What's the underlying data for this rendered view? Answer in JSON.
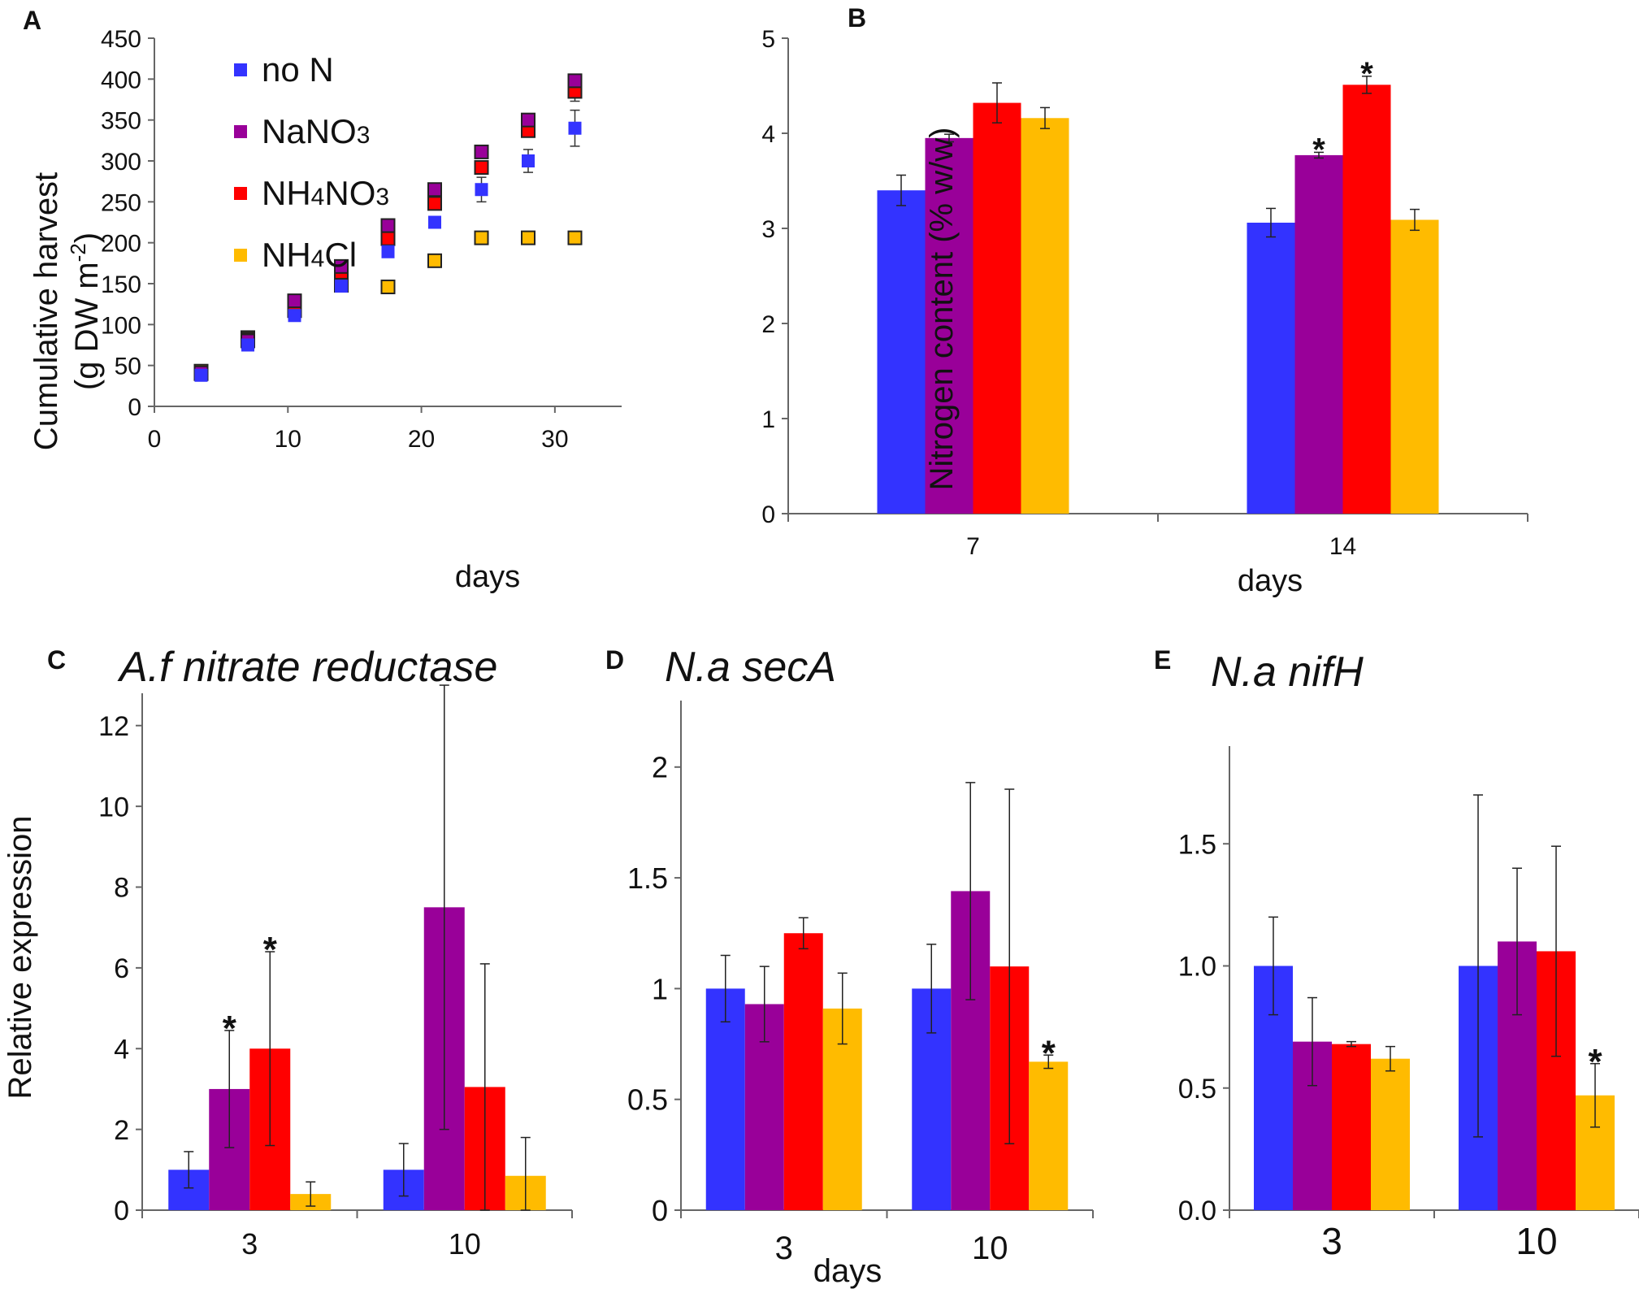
{
  "colors": {
    "no_N": "#3333ff",
    "NaNO3": "#990099",
    "NH4NO3": "#ff0000",
    "NH4Cl": "#ffbb00",
    "axis": "#666666"
  },
  "panels": {
    "A": {
      "letter": "A"
    },
    "B": {
      "letter": "B"
    },
    "C": {
      "letter": "C"
    },
    "D": {
      "letter": "D"
    },
    "E": {
      "letter": "E"
    }
  },
  "legend": {
    "no_N": "no N",
    "NaNO3_pre": "NaNO",
    "NaNO3_sub": "3",
    "NH4NO3_pre": "NH",
    "NH4NO3_sub1": "4",
    "NH4NO3_mid": "NO",
    "NH4NO3_sub2": "3",
    "NH4Cl_pre": "NH",
    "NH4Cl_sub": "4",
    "NH4Cl_post": "Cl"
  },
  "chart_data": [
    {
      "id": "A",
      "type": "scatter",
      "xlabel": "days",
      "ylabel_line1": "Cumulative harvest",
      "ylabel_line2_pre": "(g DW m",
      "ylabel_line2_sup": "-2",
      "ylabel_line2_post": ")",
      "xlim": [
        0,
        35
      ],
      "ylim": [
        0,
        450
      ],
      "xticks": [
        "0",
        "10",
        "20",
        "30"
      ],
      "xtick_values": [
        0,
        10,
        20,
        30
      ],
      "yticks": [
        "0",
        "50",
        "100",
        "150",
        "200",
        "250",
        "300",
        "350",
        "400",
        "450"
      ],
      "ytick_values": [
        0,
        50,
        100,
        150,
        200,
        250,
        300,
        350,
        400,
        450
      ],
      "x": [
        3.5,
        7,
        10.5,
        14,
        17.5,
        21,
        24.5,
        28,
        31.5
      ],
      "series": [
        {
          "key": "NH4Cl",
          "name": "NH4Cl",
          "y": [
            43,
            84,
            117,
            148,
            146,
            178,
            206,
            206,
            206
          ],
          "err": [
            0,
            8,
            0,
            0,
            0,
            0,
            0,
            0,
            0
          ]
        },
        {
          "key": "NH4NO3",
          "name": "NH4NO3",
          "y": [
            40,
            82,
            125,
            164,
            205,
            248,
            292,
            337,
            385
          ],
          "err": [
            0,
            0,
            0,
            0,
            0,
            0,
            0,
            0,
            12
          ]
        },
        {
          "key": "NaNO3",
          "name": "NaNO3",
          "y": [
            41,
            80,
            129,
            171,
            221,
            265,
            311,
            350,
            398
          ],
          "err": [
            0,
            0,
            0,
            0,
            0,
            0,
            0,
            0,
            8
          ]
        },
        {
          "key": "no_N",
          "name": "no N",
          "y": [
            38,
            75,
            111,
            147,
            189,
            225,
            265,
            300,
            340
          ],
          "err": [
            0,
            0,
            0,
            0,
            0,
            0,
            15,
            14,
            22
          ]
        }
      ]
    },
    {
      "id": "B",
      "type": "bar",
      "xlabel": "days",
      "ylabel": "Nitrogen content  (% w/w)",
      "ylim": [
        0,
        5
      ],
      "yticks": [
        "0",
        "1",
        "2",
        "3",
        "4",
        "5"
      ],
      "ytick_values": [
        0,
        1,
        2,
        3,
        4,
        5
      ],
      "categories": [
        "7",
        "14"
      ],
      "series": [
        {
          "key": "no_N",
          "name": "no N",
          "values": [
            3.4,
            3.06
          ],
          "err": [
            0.16,
            0.15
          ]
        },
        {
          "key": "NaNO3",
          "name": "NaNO3",
          "values": [
            3.95,
            3.77
          ],
          "err": [
            0.04,
            0.03
          ]
        },
        {
          "key": "NH4NO3",
          "name": "NH4NO3",
          "values": [
            4.32,
            4.51
          ],
          "err": [
            0.21,
            0.09
          ]
        },
        {
          "key": "NH4Cl",
          "name": "NH4Cl",
          "values": [
            4.16,
            3.09
          ],
          "err": [
            0.11,
            0.11
          ]
        }
      ],
      "significance": [
        {
          "series": "NaNO3",
          "category": 1,
          "label": "*"
        },
        {
          "series": "NH4NO3",
          "category": 1,
          "label": "*"
        }
      ]
    },
    {
      "id": "C",
      "type": "bar",
      "title": "A.f nitrate reductase",
      "ylabel": "Relative expression",
      "ylim": [
        0,
        12.8
      ],
      "yticks": [
        "0",
        "2",
        "4",
        "6",
        "8",
        "10",
        "12"
      ],
      "ytick_values": [
        0,
        2,
        4,
        6,
        8,
        10,
        12
      ],
      "categories": [
        "3",
        "10"
      ],
      "series": [
        {
          "key": "no_N",
          "name": "no N",
          "values": [
            1.0,
            1.0
          ],
          "err": [
            0.45,
            0.65
          ]
        },
        {
          "key": "NaNO3",
          "name": "NaNO3",
          "values": [
            3.0,
            7.5
          ],
          "err": [
            1.45,
            5.5
          ]
        },
        {
          "key": "NH4NO3",
          "name": "NH4NO3",
          "values": [
            4.0,
            3.05
          ],
          "err": [
            2.4,
            3.05
          ]
        },
        {
          "key": "NH4Cl",
          "name": "NH4Cl",
          "values": [
            0.4,
            0.85
          ],
          "err": [
            0.3,
            0.95
          ]
        }
      ],
      "significance": [
        {
          "series": "NaNO3",
          "category": 0,
          "label": "*"
        },
        {
          "series": "NH4NO3",
          "category": 0,
          "label": "*"
        }
      ]
    },
    {
      "id": "D",
      "type": "bar",
      "title": "N.a secA",
      "xlabel": "days",
      "ylim": [
        0,
        2.3
      ],
      "yticks": [
        "0",
        "0.5",
        "1",
        "1.5",
        "2"
      ],
      "ytick_values": [
        0,
        0.5,
        1,
        1.5,
        2
      ],
      "categories": [
        "3",
        "10"
      ],
      "series": [
        {
          "key": "no_N",
          "name": "no N",
          "values": [
            1.0,
            1.0
          ],
          "err": [
            0.15,
            0.2
          ]
        },
        {
          "key": "NaNO3",
          "name": "NaNO3",
          "values": [
            0.93,
            1.44
          ],
          "err": [
            0.17,
            0.49
          ]
        },
        {
          "key": "NH4NO3",
          "name": "NH4NO3",
          "values": [
            1.25,
            1.1
          ],
          "err": [
            0.07,
            0.8
          ]
        },
        {
          "key": "NH4Cl",
          "name": "NH4Cl",
          "values": [
            0.91,
            0.67
          ],
          "err": [
            0.16,
            0.03
          ]
        }
      ],
      "significance": [
        {
          "series": "NH4Cl",
          "category": 1,
          "label": "*"
        }
      ]
    },
    {
      "id": "E",
      "type": "bar",
      "title": "N.a nifH",
      "ylim": [
        0,
        1.9
      ],
      "yticks": [
        "0.0",
        "0.5",
        "1.0",
        "1.5"
      ],
      "ytick_values": [
        0,
        0.5,
        1.0,
        1.5
      ],
      "categories": [
        "3",
        "10"
      ],
      "series": [
        {
          "key": "no_N",
          "name": "no N",
          "values": [
            1.0,
            1.0
          ],
          "err": [
            0.2,
            0.7
          ]
        },
        {
          "key": "NaNO3",
          "name": "NaNO3",
          "values": [
            0.69,
            1.1
          ],
          "err": [
            0.18,
            0.3
          ]
        },
        {
          "key": "NH4NO3",
          "name": "NH4NO3",
          "values": [
            0.68,
            1.06
          ],
          "err": [
            0.01,
            0.43
          ]
        },
        {
          "key": "NH4Cl",
          "name": "NH4Cl",
          "values": [
            0.62,
            0.47
          ],
          "err": [
            0.05,
            0.13
          ]
        }
      ],
      "significance": [
        {
          "series": "NH4Cl",
          "category": 1,
          "label": "*"
        }
      ]
    }
  ]
}
